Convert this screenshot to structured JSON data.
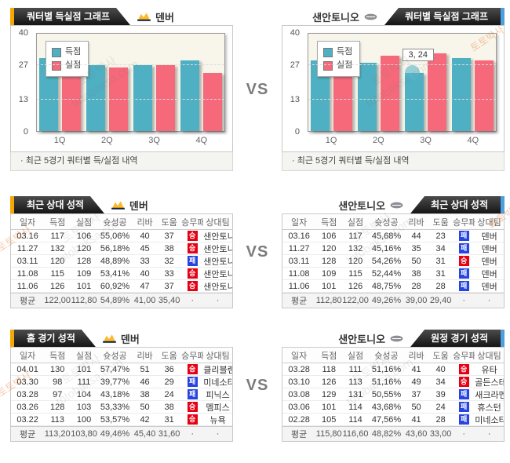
{
  "vs_label": "VS",
  "watermark": {
    "brand_kr": "토토박사",
    "brand_en": "totobaksa.com"
  },
  "teams": {
    "left": "덴버",
    "right": "샌안토니오"
  },
  "top": {
    "left": {
      "tab_title": "쿼터별 득실점 그래프",
      "caption": "· 최근 5경기 쿼터별 득/실점 내역"
    },
    "right": {
      "tab_title": "쿼터별 득실점 그래프",
      "caption": "· 최근 5경기 쿼터별 득/실점 내역"
    }
  },
  "chart_data": [
    {
      "type": "bar",
      "title": "덴버 최근 5경기 쿼터별 득/실점",
      "categories": [
        "1Q",
        "2Q",
        "3Q",
        "4Q"
      ],
      "series": [
        {
          "name": "득점",
          "values": [
            30,
            27,
            27,
            29
          ]
        },
        {
          "name": "실점",
          "values": [
            26,
            26,
            27,
            24
          ]
        }
      ],
      "ylim": [
        0,
        40
      ],
      "yticks": [
        0,
        13,
        27,
        40
      ],
      "grid": true,
      "legend_position": "top-left"
    },
    {
      "type": "bar",
      "title": "샌안토니오 최근 5경기 쿼터별 득/실점",
      "categories": [
        "1Q",
        "2Q",
        "3Q",
        "4Q"
      ],
      "series": [
        {
          "name": "득점",
          "values": [
            29,
            28,
            24,
            30
          ]
        },
        {
          "name": "실점",
          "values": [
            23,
            31,
            32,
            29
          ]
        }
      ],
      "ylim": [
        0,
        40
      ],
      "yticks": [
        0,
        13,
        27,
        40
      ],
      "grid": true,
      "legend_position": "top-left",
      "tooltip": "3, 24",
      "tooltip_target": {
        "category": "3Q",
        "series": "득점",
        "value": 24
      }
    }
  ],
  "tables": {
    "columns": [
      "일자",
      "득점",
      "실점",
      "슛성공",
      "리바",
      "도움",
      "승무패",
      "상대팀"
    ],
    "h2h_left": {
      "tab_title": "최근 상대 성적",
      "rows": [
        {
          "date": "03.16",
          "pts": "117",
          "conc": "106",
          "fg": "55,06%",
          "reb": "40",
          "ast": "37",
          "result": "승",
          "opp": "샌안토니"
        },
        {
          "date": "11.27",
          "pts": "132",
          "conc": "120",
          "fg": "56,18%",
          "reb": "45",
          "ast": "38",
          "result": "승",
          "opp": "샌안토니"
        },
        {
          "date": "03.11",
          "pts": "120",
          "conc": "128",
          "fg": "48,89%",
          "reb": "33",
          "ast": "32",
          "result": "패",
          "opp": "샌안토니"
        },
        {
          "date": "11.08",
          "pts": "115",
          "conc": "109",
          "fg": "53,41%",
          "reb": "40",
          "ast": "33",
          "result": "승",
          "opp": "샌안토니"
        },
        {
          "date": "11.06",
          "pts": "126",
          "conc": "101",
          "fg": "60,92%",
          "reb": "47",
          "ast": "37",
          "result": "승",
          "opp": "샌안토니"
        },
        {
          "date": "평균",
          "pts": "122,00",
          "conc": "112,80",
          "fg": "54,89%",
          "reb": "41,00",
          "ast": "35,40",
          "result": "·",
          "opp": "·"
        }
      ]
    },
    "h2h_right": {
      "tab_title": "최근 상대 성적",
      "rows": [
        {
          "date": "03.16",
          "pts": "106",
          "conc": "117",
          "fg": "45,68%",
          "reb": "44",
          "ast": "23",
          "result": "패",
          "opp": "덴버"
        },
        {
          "date": "11.27",
          "pts": "120",
          "conc": "132",
          "fg": "45,16%",
          "reb": "35",
          "ast": "34",
          "result": "패",
          "opp": "덴버"
        },
        {
          "date": "03.11",
          "pts": "128",
          "conc": "120",
          "fg": "54,26%",
          "reb": "50",
          "ast": "31",
          "result": "승",
          "opp": "덴버"
        },
        {
          "date": "11.08",
          "pts": "109",
          "conc": "115",
          "fg": "52,44%",
          "reb": "38",
          "ast": "31",
          "result": "패",
          "opp": "덴버"
        },
        {
          "date": "11.06",
          "pts": "101",
          "conc": "126",
          "fg": "48,75%",
          "reb": "28",
          "ast": "28",
          "result": "패",
          "opp": "덴버"
        },
        {
          "date": "평균",
          "pts": "112,80",
          "conc": "122,00",
          "fg": "49,26%",
          "reb": "39,00",
          "ast": "29,40",
          "result": "·",
          "opp": "·"
        }
      ]
    },
    "home_left": {
      "tab_title": "홈 경기 성적",
      "rows": [
        {
          "date": "04.01",
          "pts": "130",
          "conc": "101",
          "fg": "57,47%",
          "reb": "51",
          "ast": "36",
          "result": "승",
          "opp": "클리블랜"
        },
        {
          "date": "03.30",
          "pts": "98",
          "conc": "111",
          "fg": "39,77%",
          "reb": "46",
          "ast": "29",
          "result": "패",
          "opp": "미네소타"
        },
        {
          "date": "03.28",
          "pts": "97",
          "conc": "104",
          "fg": "43,18%",
          "reb": "38",
          "ast": "24",
          "result": "패",
          "opp": "피닉스"
        },
        {
          "date": "03.26",
          "pts": "128",
          "conc": "103",
          "fg": "53,33%",
          "reb": "50",
          "ast": "38",
          "result": "승",
          "opp": "멤피스"
        },
        {
          "date": "03.22",
          "pts": "113",
          "conc": "100",
          "fg": "53,57%",
          "reb": "42",
          "ast": "31",
          "result": "승",
          "opp": "뉴욕"
        },
        {
          "date": "평균",
          "pts": "113,20",
          "conc": "103,80",
          "fg": "49,46%",
          "reb": "45,40",
          "ast": "31,60",
          "result": "·",
          "opp": "·"
        }
      ]
    },
    "away_right": {
      "tab_title": "원정 경기 성적",
      "rows": [
        {
          "date": "03.28",
          "pts": "118",
          "conc": "111",
          "fg": "51,16%",
          "reb": "41",
          "ast": "40",
          "result": "승",
          "opp": "유타"
        },
        {
          "date": "03.10",
          "pts": "126",
          "conc": "113",
          "fg": "51,16%",
          "reb": "49",
          "ast": "34",
          "result": "승",
          "opp": "골든스테"
        },
        {
          "date": "03.08",
          "pts": "129",
          "conc": "131",
          "fg": "50,55%",
          "reb": "37",
          "ast": "39",
          "result": "패",
          "opp": "새크라멘"
        },
        {
          "date": "03.06",
          "pts": "101",
          "conc": "114",
          "fg": "43,68%",
          "reb": "50",
          "ast": "24",
          "result": "패",
          "opp": "휴스턴"
        },
        {
          "date": "02.28",
          "pts": "105",
          "conc": "114",
          "fg": "47,56%",
          "reb": "41",
          "ast": "28",
          "result": "패",
          "opp": "미네소타"
        },
        {
          "date": "평균",
          "pts": "115,80",
          "conc": "116,60",
          "fg": "48,82%",
          "reb": "43,60",
          "ast": "33,00",
          "result": "·",
          "opp": "·"
        }
      ]
    }
  },
  "colors": {
    "scored_teal": "#4FB0C3",
    "conceded_pink": "#F5697B",
    "accent_orange": "#F7A800",
    "accent_blue": "#4E9FE0",
    "win_red": "#E60013",
    "loss_blue": "#2644E0"
  }
}
